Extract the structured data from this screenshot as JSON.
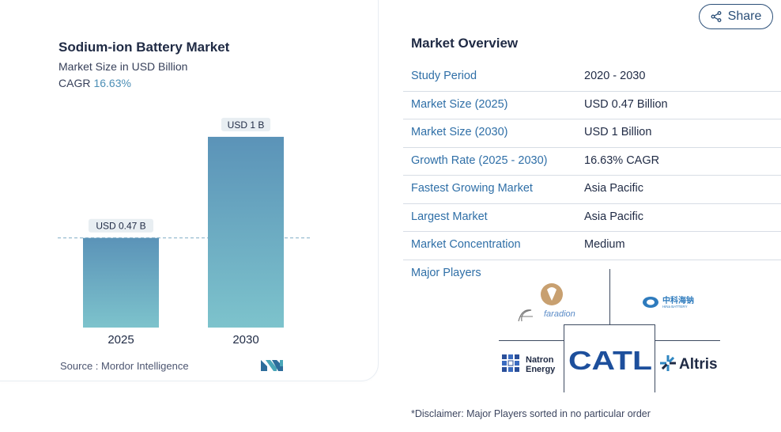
{
  "share": {
    "label": "Share",
    "icon": "share-icon"
  },
  "chart_card": {
    "title": "Sodium-ion Battery Market",
    "subtitle": "Market Size in USD Billion",
    "cagr_label": "CAGR",
    "cagr_value": "16.63%",
    "source": "Source :  Mordor Intelligence"
  },
  "chart_data": {
    "type": "bar",
    "title": "Sodium-ion Battery Market",
    "subtitle": "Market Size in USD Billion",
    "categories": [
      "2025",
      "2030"
    ],
    "values": [
      0.47,
      1
    ],
    "data_labels": [
      "USD 0.47 B",
      "USD 1 B"
    ],
    "ylim": [
      0,
      1.12
    ],
    "grid": false,
    "colors": {
      "bar_top": "#5b93b8",
      "bar_bottom": "#7dc3cc",
      "dashed_line": "#8fb6cc",
      "label_bg": "#e8eef2"
    }
  },
  "overview": {
    "title": "Market Overview",
    "rows": [
      {
        "key": "Study Period",
        "value": "2020 - 2030"
      },
      {
        "key": "Market Size (2025)",
        "value": "USD 0.47 Billion"
      },
      {
        "key": "Market Size (2030)",
        "value": "USD 1 Billion"
      },
      {
        "key": "Growth Rate (2025 - 2030)",
        "value": "16.63% CAGR"
      },
      {
        "key": "Fastest Growing Market",
        "value": "Asia Pacific"
      },
      {
        "key": "Largest Market",
        "value": "Asia Pacific"
      },
      {
        "key": "Market Concentration",
        "value": "Medium"
      }
    ]
  },
  "major_players": {
    "title": "Major Players",
    "logos": {
      "faradion": "faradion",
      "hina": "中科海钠",
      "hina_sub": "HiNa BATTERY",
      "natron_1": "Natron",
      "natron_2": "Energy",
      "catl": "CATL",
      "altris": "Altris"
    },
    "disclaimer": "*Disclaimer: Major Players sorted in no particular order"
  },
  "colors": {
    "accent": "#2f6fa7",
    "title": "#1f2a44",
    "cagr": "#4d8fb6"
  }
}
